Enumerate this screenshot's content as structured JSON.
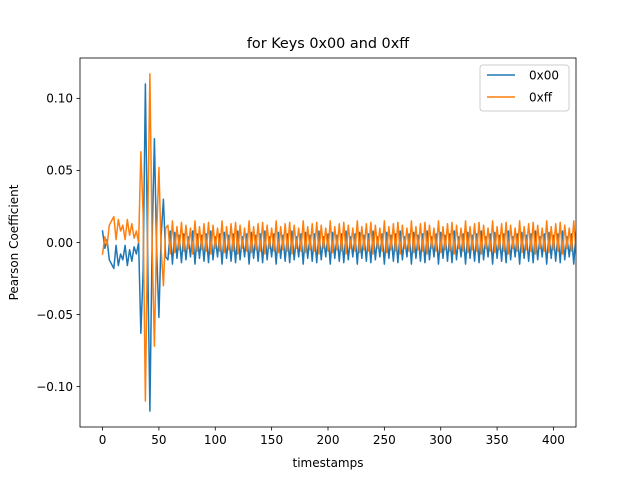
{
  "chart_data": {
    "type": "line",
    "title": "for Keys 0x00 and 0xff",
    "xlabel": "timestamps",
    "ylabel": "Pearson Coefficient",
    "xlim": [
      -20,
      420
    ],
    "ylim": [
      -0.128,
      0.128
    ],
    "xticks": [
      0,
      50,
      100,
      150,
      200,
      250,
      300,
      350,
      400
    ],
    "xtick_labels": [
      "0",
      "50",
      "100",
      "150",
      "200",
      "250",
      "300",
      "350",
      "400"
    ],
    "yticks": [
      -0.1,
      -0.05,
      0.0,
      0.05,
      0.1
    ],
    "ytick_labels": [
      "−0.10",
      "−0.05",
      "0.00",
      "0.05",
      "0.10"
    ],
    "grid": false,
    "legend": "top-right",
    "x_start": 0,
    "x_step": 2,
    "series": [
      {
        "name": "0x00",
        "color": "#1f77b4",
        "values": [
          0.008,
          -0.004,
          0.002,
          -0.012,
          -0.015,
          -0.018,
          -0.002,
          -0.016,
          -0.008,
          -0.012,
          -0.002,
          -0.016,
          -0.005,
          -0.013,
          -0.003,
          -0.008,
          0.0,
          -0.063,
          -0.02,
          0.11,
          -0.008,
          -0.117,
          0.002,
          0.072,
          -0.006,
          -0.052,
          0.005,
          0.03,
          -0.01,
          -0.012,
          0.008,
          -0.015,
          0.007,
          -0.011,
          0.005,
          -0.014,
          0.006,
          -0.012,
          0.004,
          -0.01,
          0.008,
          -0.015,
          0.006,
          -0.011,
          0.005,
          -0.013,
          0.006,
          -0.014,
          0.008,
          -0.012,
          0.004,
          -0.01,
          0.006,
          -0.015,
          0.007,
          -0.011,
          0.005,
          -0.013,
          0.006,
          -0.014,
          0.008,
          -0.012,
          0.004,
          -0.01,
          0.006,
          -0.015,
          0.007,
          -0.011,
          0.005,
          -0.013,
          0.006,
          -0.014,
          0.008,
          -0.012,
          0.004,
          -0.01,
          0.006,
          -0.015,
          0.007,
          -0.011,
          0.005,
          -0.013,
          0.006,
          -0.014,
          0.008,
          -0.012,
          0.004,
          -0.01,
          0.006,
          -0.015,
          0.007,
          -0.011,
          0.005,
          -0.013,
          0.006,
          -0.014,
          0.008,
          -0.012,
          0.004,
          -0.01,
          0.006,
          -0.015,
          0.007,
          -0.011,
          0.005,
          -0.013,
          0.006,
          -0.014,
          0.008,
          -0.012,
          0.004,
          -0.01,
          0.006,
          -0.015,
          0.007,
          -0.011,
          0.005,
          -0.013,
          0.006,
          -0.014,
          0.008,
          -0.012,
          0.004,
          -0.01,
          0.006,
          -0.015,
          0.007,
          -0.011,
          0.005,
          -0.013,
          0.006,
          -0.014,
          0.008,
          -0.012,
          0.004,
          -0.01,
          0.006,
          -0.015,
          0.007,
          -0.011,
          0.005,
          -0.013,
          0.006,
          -0.014,
          0.008,
          -0.012,
          0.004,
          -0.01,
          0.006,
          -0.015,
          0.007,
          -0.011,
          0.005,
          -0.013,
          0.006,
          -0.014,
          0.008,
          -0.012,
          0.004,
          -0.01,
          0.006,
          -0.015,
          0.007,
          -0.011,
          0.005,
          -0.013,
          0.006,
          -0.014,
          0.008,
          -0.012,
          0.004,
          -0.01,
          0.006,
          -0.015,
          0.007,
          -0.011,
          0.005,
          -0.013,
          0.006,
          -0.014,
          0.008,
          -0.012,
          0.004,
          -0.01,
          0.006,
          -0.015,
          0.007,
          -0.011,
          0.005,
          -0.013,
          0.006,
          -0.014,
          0.008,
          -0.012,
          0.004,
          -0.01,
          0.006,
          -0.015,
          0.007,
          -0.011,
          0.005,
          -0.013,
          0.006,
          -0.014,
          0.008,
          -0.012,
          0.004,
          -0.01,
          0.006,
          -0.015,
          0.007,
          -0.011,
          0.005,
          -0.013,
          0.006,
          -0.014
        ]
      },
      {
        "name": "0xff",
        "color": "#ff7f0e",
        "values": [
          -0.008,
          0.004,
          -0.002,
          0.012,
          0.015,
          0.018,
          0.002,
          0.016,
          0.008,
          0.012,
          0.002,
          0.016,
          0.005,
          0.013,
          0.003,
          0.008,
          0.0,
          0.063,
          0.02,
          -0.11,
          0.008,
          0.117,
          -0.002,
          -0.072,
          0.006,
          0.052,
          -0.005,
          -0.03,
          0.01,
          0.012,
          -0.008,
          0.015,
          -0.007,
          0.011,
          -0.005,
          0.014,
          -0.006,
          0.012,
          -0.004,
          0.01,
          -0.008,
          0.015,
          -0.006,
          0.011,
          -0.005,
          0.013,
          -0.006,
          0.014,
          -0.008,
          0.012,
          -0.004,
          0.01,
          -0.006,
          0.015,
          -0.007,
          0.011,
          -0.005,
          0.013,
          -0.006,
          0.014,
          -0.008,
          0.012,
          -0.004,
          0.01,
          -0.006,
          0.015,
          -0.007,
          0.011,
          -0.005,
          0.013,
          -0.006,
          0.014,
          -0.008,
          0.012,
          -0.004,
          0.01,
          -0.006,
          0.015,
          -0.007,
          0.011,
          -0.005,
          0.013,
          -0.006,
          0.014,
          -0.008,
          0.012,
          -0.004,
          0.01,
          -0.006,
          0.015,
          -0.007,
          0.011,
          -0.005,
          0.013,
          -0.006,
          0.014,
          -0.008,
          0.012,
          -0.004,
          0.01,
          -0.006,
          0.015,
          -0.007,
          0.011,
          -0.005,
          0.013,
          -0.006,
          0.014,
          -0.008,
          0.012,
          -0.004,
          0.01,
          -0.006,
          0.015,
          -0.007,
          0.011,
          -0.005,
          0.013,
          -0.006,
          0.014,
          -0.008,
          0.012,
          -0.004,
          0.01,
          -0.006,
          0.015,
          -0.007,
          0.011,
          -0.005,
          0.013,
          -0.006,
          0.014,
          -0.008,
          0.012,
          -0.004,
          0.01,
          -0.006,
          0.015,
          -0.007,
          0.011,
          -0.005,
          0.013,
          -0.006,
          0.014,
          -0.008,
          0.012,
          -0.004,
          0.01,
          -0.006,
          0.015,
          -0.007,
          0.011,
          -0.005,
          0.013,
          -0.006,
          0.014,
          -0.008,
          0.012,
          -0.004,
          0.01,
          -0.006,
          0.015,
          -0.007,
          0.011,
          -0.005,
          0.013,
          -0.006,
          0.014,
          -0.008,
          0.012,
          -0.004,
          0.01,
          -0.006,
          0.015,
          -0.007,
          0.011,
          -0.005,
          0.013,
          -0.006,
          0.014,
          -0.008,
          0.012,
          -0.004,
          0.01,
          -0.006,
          0.015,
          -0.007,
          0.011,
          -0.005,
          0.013,
          -0.006,
          0.014,
          -0.008,
          0.012,
          -0.004,
          0.01,
          -0.006,
          0.015,
          -0.007,
          0.011,
          -0.005,
          0.013,
          -0.006,
          0.014,
          -0.008,
          0.012,
          -0.004,
          0.01,
          -0.006,
          0.015,
          -0.007,
          0.011,
          -0.005,
          0.013,
          -0.006,
          0.014
        ]
      }
    ]
  }
}
